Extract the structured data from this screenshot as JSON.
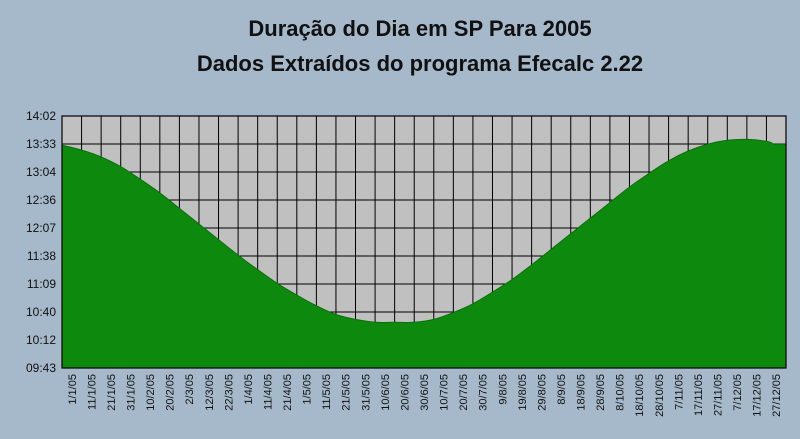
{
  "chart_data": {
    "type": "area",
    "title": "Duração do Dia em SP Para 2005",
    "subtitle": "Dados Extraídos do programa Efecalc 2.22",
    "xlabel": "",
    "ylabel": "",
    "x_tick_labels": [
      "1/1/05",
      "11/1/05",
      "21/1/05",
      "31/1/05",
      "10/2/05",
      "20/2/05",
      "2/3/05",
      "12/3/05",
      "22/3/05",
      "1/4/05",
      "11/4/05",
      "21/4/05",
      "1/5/05",
      "11/5/05",
      "21/5/05",
      "31/5/05",
      "10/6/05",
      "20/6/05",
      "30/6/05",
      "10/7/05",
      "20/7/05",
      "30/7/05",
      "9/8/05",
      "19/8/05",
      "29/8/05",
      "8/9/05",
      "18/9/05",
      "28/9/05",
      "8/10/05",
      "18/10/05",
      "28/10/05",
      "7/11/05",
      "17/11/05",
      "27/11/05",
      "7/12/05",
      "17/12/05",
      "27/12/05"
    ],
    "y_tick_labels": [
      "09:43",
      "10:12",
      "10:40",
      "11:09",
      "11:38",
      "12:07",
      "12:36",
      "13:04",
      "13:33",
      "14:02"
    ],
    "ylim_minutes": [
      583,
      842
    ],
    "day_of_year": [
      1,
      11,
      21,
      31,
      41,
      51,
      61,
      71,
      81,
      91,
      101,
      111,
      121,
      131,
      141,
      151,
      161,
      171,
      181,
      191,
      201,
      211,
      221,
      231,
      241,
      251,
      261,
      271,
      281,
      291,
      301,
      311,
      321,
      331,
      341,
      351,
      361,
      365
    ],
    "day_length_minutes": [
      812,
      807,
      800,
      790,
      777,
      763,
      747,
      731,
      715,
      699,
      684,
      670,
      658,
      647,
      638,
      633,
      630,
      630,
      630,
      633,
      640,
      649,
      661,
      674,
      689,
      705,
      721,
      737,
      753,
      769,
      783,
      796,
      806,
      813,
      817,
      818,
      816,
      813
    ],
    "grid": true,
    "colors": {
      "area_fill": "#0d8a0d",
      "plot_background": "#c0c0c0",
      "page_background": "#a6b9cb",
      "grid_lines": "#000000"
    }
  }
}
